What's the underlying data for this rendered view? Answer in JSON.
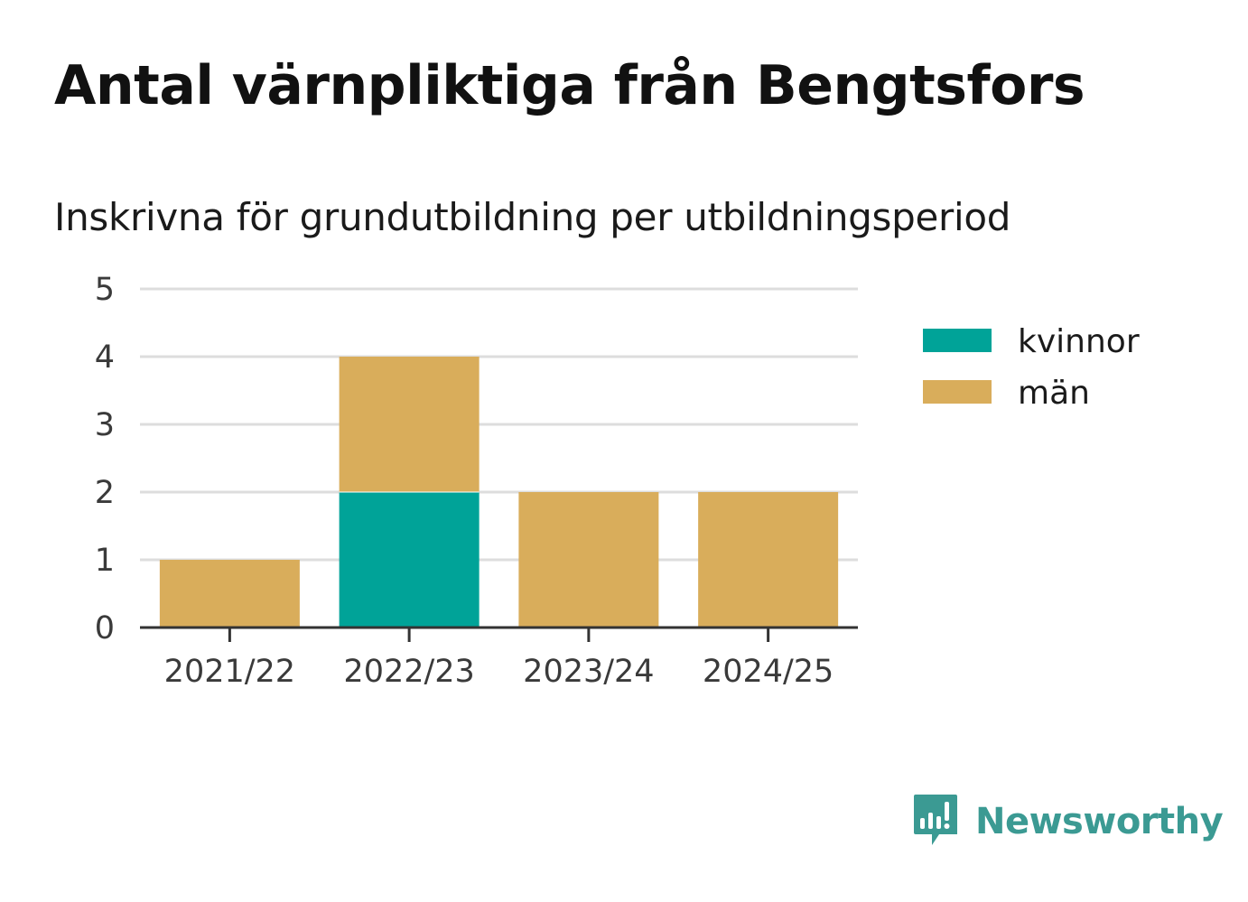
{
  "title": "Antal värnpliktiga från Bengtsfors",
  "subtitle": "Inskrivna för grundutbildning per utbildningsperiod",
  "chart_data": {
    "type": "bar",
    "stacked": true,
    "title": "Antal värnpliktiga från Bengtsfors",
    "subtitle": "Inskrivna för grundutbildning per utbildningsperiod",
    "categories": [
      "2021/22",
      "2022/23",
      "2023/24",
      "2024/25"
    ],
    "series": [
      {
        "name": "kvinnor",
        "color": "#00a398",
        "values": [
          0,
          2,
          0,
          0
        ]
      },
      {
        "name": "män",
        "color": "#d9ad5b",
        "values": [
          1,
          2,
          2,
          2
        ]
      }
    ],
    "yticks": [
      "0",
      "1",
      "2",
      "3",
      "4",
      "5"
    ],
    "ylim": [
      0,
      5
    ],
    "xlabel": "",
    "ylabel": "",
    "grid": true,
    "legend": "top-right"
  },
  "colors": {
    "grid": "#dddddd",
    "axis": "#333333",
    "brand": "#3b9a93"
  },
  "brand": {
    "name": "Newsworthy",
    "icon": "newsworthy-logo-icon"
  }
}
